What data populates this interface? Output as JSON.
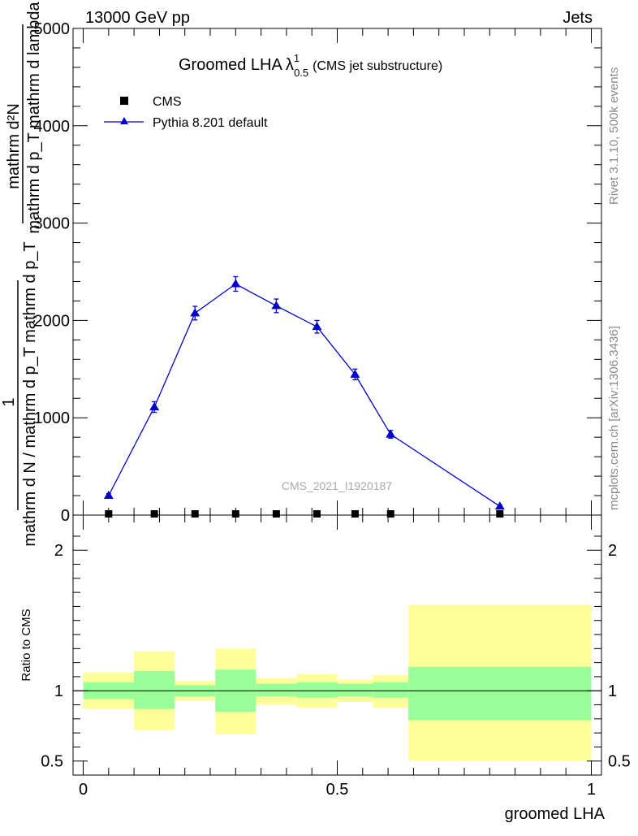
{
  "header": {
    "left": "13000 GeV pp",
    "right": "Jets"
  },
  "side_text": {
    "rivet": "Rivet 3.1.10,  500k events",
    "mcplots": "mcplots.cern.ch [arXiv:1306.3436]"
  },
  "watermark": "CMS_2021_I1920187",
  "colors": {
    "mc": "#0000cc",
    "band_inner": "#99ff99",
    "band_outer": "#ffff99",
    "data": "#000000"
  },
  "chart_data": [
    {
      "type": "line",
      "panel": "main",
      "title_main": "Groomed LHA",
      "title_symbol": "λ",
      "title_sup": "1",
      "title_sub": "0.5",
      "title_suffix": "(CMS jet substructure)",
      "ylabel_numerator": "mathrm d²N",
      "ylabel_num_line2": "mathrm d p_T mathrm d lambda",
      "ylabel_prefix": "1",
      "ylabel_denominator": "mathrm d N / mathrm d p_T mathrm d p_T",
      "xlim": [
        -0.02,
        1.02
      ],
      "ylim": [
        0,
        5000
      ],
      "yticks": [
        0,
        1000,
        2000,
        3000,
        4000,
        5000
      ],
      "ytick_labels": [
        "0",
        "1000",
        "2000",
        "3000",
        "4000",
        "5000"
      ],
      "legend_position": "top-left",
      "series": [
        {
          "name": "CMS",
          "marker": "square",
          "x": [
            0.05,
            0.14,
            0.22,
            0.3,
            0.38,
            0.46,
            0.535,
            0.605,
            0.82
          ],
          "y": [
            0,
            0,
            0,
            0,
            0,
            0,
            0,
            0,
            0
          ]
        },
        {
          "name": "Pythia 8.201 default",
          "marker": "triangle",
          "x": [
            0.05,
            0.14,
            0.22,
            0.3,
            0.38,
            0.46,
            0.535,
            0.605,
            0.82
          ],
          "y": [
            200,
            1110,
            2075,
            2375,
            2150,
            1935,
            1445,
            830,
            90
          ],
          "err": [
            20,
            55,
            70,
            75,
            70,
            65,
            55,
            40,
            15
          ]
        }
      ]
    },
    {
      "type": "area",
      "panel": "ratio",
      "ylabel": "Ratio to CMS",
      "xlabel": "groomed LHA",
      "xlim": [
        -0.02,
        1.02
      ],
      "ylim": [
        0.4,
        2.25
      ],
      "yticks": [
        0.5,
        1,
        2
      ],
      "ytick_labels": [
        "0.5",
        "1",
        "2"
      ],
      "xticks": [
        0,
        0.5,
        1
      ],
      "xtick_labels": [
        "0",
        "0.5",
        "1"
      ],
      "bins": [
        {
          "x0": 0.0,
          "x1": 0.1,
          "inner": [
            0.94,
            1.06
          ],
          "outer": [
            0.87,
            1.13
          ]
        },
        {
          "x0": 0.1,
          "x1": 0.18,
          "inner": [
            0.87,
            1.14
          ],
          "outer": [
            0.72,
            1.28
          ]
        },
        {
          "x0": 0.18,
          "x1": 0.26,
          "inner": [
            0.96,
            1.04
          ],
          "outer": [
            0.93,
            1.07
          ]
        },
        {
          "x0": 0.26,
          "x1": 0.34,
          "inner": [
            0.85,
            1.15
          ],
          "outer": [
            0.69,
            1.3
          ]
        },
        {
          "x0": 0.34,
          "x1": 0.42,
          "inner": [
            0.96,
            1.05
          ],
          "outer": [
            0.9,
            1.09
          ]
        },
        {
          "x0": 0.42,
          "x1": 0.5,
          "inner": [
            0.95,
            1.06
          ],
          "outer": [
            0.88,
            1.12
          ]
        },
        {
          "x0": 0.5,
          "x1": 0.57,
          "inner": [
            0.96,
            1.05
          ],
          "outer": [
            0.92,
            1.08
          ]
        },
        {
          "x0": 0.57,
          "x1": 0.64,
          "inner": [
            0.95,
            1.06
          ],
          "outer": [
            0.88,
            1.11
          ]
        },
        {
          "x0": 0.64,
          "x1": 1.0,
          "inner": [
            0.79,
            1.17
          ],
          "outer": [
            0.5,
            1.61
          ]
        }
      ],
      "reference": 1
    }
  ]
}
